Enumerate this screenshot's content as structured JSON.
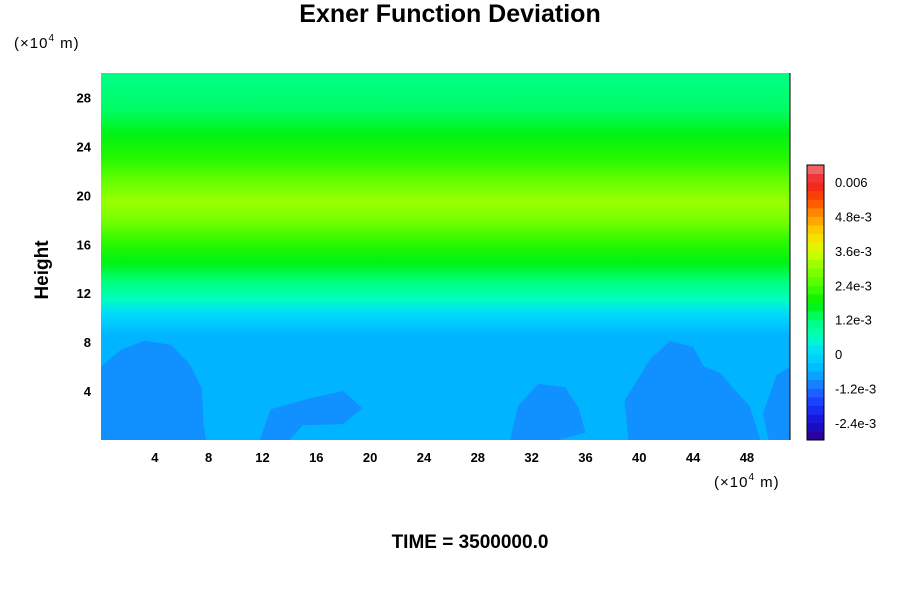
{
  "chart_data": {
    "type": "heatmap",
    "title": "Exner Function Deviation",
    "ylabel": "Height",
    "x_unit_prefix": "(×10",
    "x_unit_exp": "4",
    "x_unit_suffix": " m)",
    "y_unit_prefix": "(×10",
    "y_unit_exp": "4",
    "y_unit_suffix": " m)",
    "xlim": [
      0,
      51.2
    ],
    "ylim": [
      0,
      30
    ],
    "x_ticks": [
      4,
      8,
      12,
      16,
      20,
      24,
      28,
      32,
      36,
      40,
      44,
      48
    ],
    "y_ticks": [
      4,
      8,
      12,
      16,
      20,
      24,
      28
    ],
    "colorbar": {
      "range": [
        -0.003,
        0.0066
      ],
      "tick_values": [
        0.006,
        0.0048,
        0.0036,
        0.0024,
        0.0012,
        0,
        -0.0012,
        -0.0024
      ],
      "tick_labels": [
        "0.006",
        "4.8e-3",
        "3.6e-3",
        "2.4e-3",
        "1.2e-3",
        "0",
        "-1.2e-3",
        "-2.4e-3"
      ]
    },
    "height_profile": [
      {
        "height": 0.5,
        "value": -0.0006
      },
      {
        "height": 8.5,
        "value": -0.0006
      },
      {
        "height": 9.5,
        "value": -0.00025
      },
      {
        "height": 10.5,
        "value": 0.0001
      },
      {
        "height": 11.5,
        "value": 0.0006
      },
      {
        "height": 13,
        "value": 0.0012
      },
      {
        "height": 14.5,
        "value": 0.0017
      },
      {
        "height": 16,
        "value": 0.0021
      },
      {
        "height": 18,
        "value": 0.0028
      },
      {
        "height": 19.5,
        "value": 0.0031
      },
      {
        "height": 21,
        "value": 0.0027
      },
      {
        "height": 23,
        "value": 0.0021
      },
      {
        "height": 25,
        "value": 0.0017
      },
      {
        "height": 27,
        "value": 0.0013
      },
      {
        "height": 29.5,
        "value": 0.0011
      }
    ],
    "low_regions_value": -0.0009
  },
  "footer": {
    "time_label": "TIME = 3500000.0"
  }
}
